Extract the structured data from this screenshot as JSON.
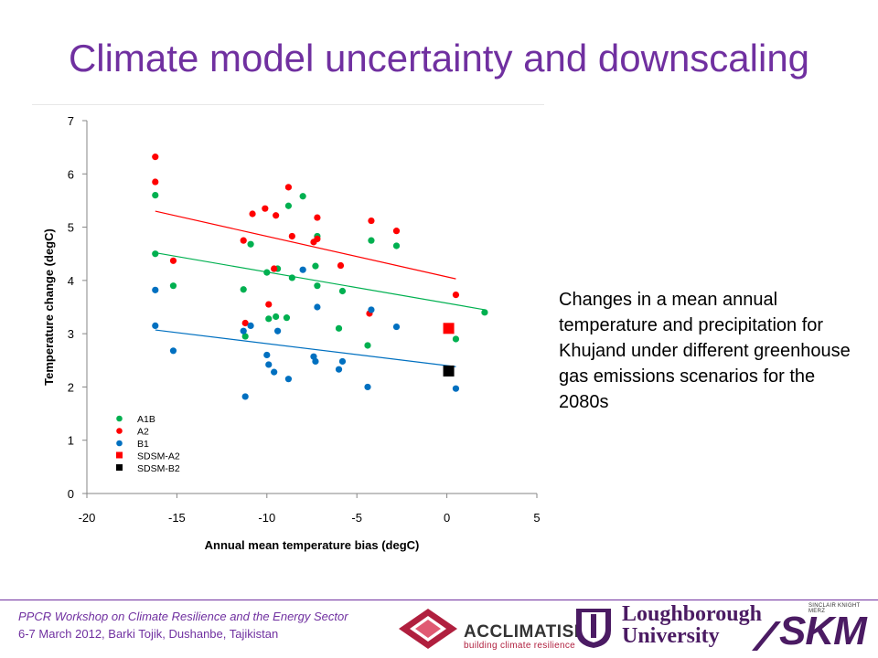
{
  "title": "Climate model uncertainty and downscaling",
  "description": "Changes in a mean annual temperature and precipitation for Khujand under different greenhouse gas emissions scenarios for the 2080s",
  "footer": {
    "line1": "PPCR Workshop on Climate Resilience and the Energy Sector",
    "line2": "6-7 March 2012, Barki Tojik, Dushanbe, Tajikistan"
  },
  "logos": {
    "acclimatise": "ACCLIMATISE",
    "acclimatise_tagline": "building climate resilience",
    "loughborough_line1": "Loughborough",
    "loughborough_line2": "University",
    "skm_tagline": "SINCLAIR KNIGHT MERZ",
    "skm": "SKM"
  },
  "colors": {
    "title": "#7030a0",
    "A1B": "#00b050",
    "A2": "#ff0000",
    "B1": "#0070c0",
    "SDSM-A2": "#ff0000",
    "SDSM-B2": "#000000"
  },
  "chart_data": {
    "type": "scatter",
    "xlabel": "Annual mean temperature bias (degC)",
    "ylabel": "Temperature change (degC)",
    "xlim": [
      -20,
      5
    ],
    "ylim": [
      0,
      7
    ],
    "xticks": [
      -20,
      -15,
      -10,
      -5,
      0,
      5
    ],
    "yticks": [
      0,
      1,
      2,
      3,
      4,
      5,
      6,
      7
    ],
    "grid": false,
    "legend_position": "bottom-left",
    "series": [
      {
        "name": "A1B",
        "marker": "circle",
        "color": "#00b050",
        "points": [
          [
            -16.2,
            5.6
          ],
          [
            -16.2,
            4.5
          ],
          [
            -15.2,
            3.9
          ],
          [
            -11.3,
            3.83
          ],
          [
            -11.2,
            2.95
          ],
          [
            -10.9,
            4.68
          ],
          [
            -10.0,
            4.15
          ],
          [
            -9.9,
            3.28
          ],
          [
            -9.5,
            3.32
          ],
          [
            -9.4,
            4.22
          ],
          [
            -8.9,
            3.3
          ],
          [
            -8.8,
            5.4
          ],
          [
            -8.6,
            4.05
          ],
          [
            -8.0,
            5.58
          ],
          [
            -7.3,
            4.27
          ],
          [
            -7.2,
            4.83
          ],
          [
            -7.2,
            3.9
          ],
          [
            -6.0,
            3.1
          ],
          [
            -5.8,
            3.8
          ],
          [
            -4.4,
            2.78
          ],
          [
            -4.2,
            4.75
          ],
          [
            -2.8,
            4.65
          ],
          [
            0.5,
            2.9
          ],
          [
            2.1,
            3.4
          ]
        ],
        "trend": [
          [
            -16.2,
            4.52
          ],
          [
            2.1,
            3.45
          ]
        ]
      },
      {
        "name": "A2",
        "marker": "circle",
        "color": "#ff0000",
        "points": [
          [
            -16.2,
            6.32
          ],
          [
            -16.2,
            5.85
          ],
          [
            -15.2,
            4.37
          ],
          [
            -11.3,
            4.75
          ],
          [
            -11.2,
            3.2
          ],
          [
            -10.8,
            5.25
          ],
          [
            -10.1,
            5.35
          ],
          [
            -9.9,
            3.55
          ],
          [
            -9.6,
            4.22
          ],
          [
            -9.5,
            5.22
          ],
          [
            -8.8,
            5.75
          ],
          [
            -8.6,
            4.83
          ],
          [
            -7.4,
            4.72
          ],
          [
            -7.2,
            4.78
          ],
          [
            -7.2,
            5.18
          ],
          [
            -5.9,
            4.28
          ],
          [
            -4.3,
            3.38
          ],
          [
            -4.2,
            5.12
          ],
          [
            -2.8,
            4.93
          ],
          [
            0.5,
            3.73
          ]
        ],
        "trend": [
          [
            -16.2,
            5.3
          ],
          [
            0.5,
            4.03
          ]
        ]
      },
      {
        "name": "B1",
        "marker": "circle",
        "color": "#0070c0",
        "points": [
          [
            -16.2,
            3.82
          ],
          [
            -16.2,
            3.15
          ],
          [
            -15.2,
            2.68
          ],
          [
            -11.3,
            3.05
          ],
          [
            -11.2,
            1.82
          ],
          [
            -10.9,
            3.15
          ],
          [
            -10.0,
            2.6
          ],
          [
            -9.9,
            2.42
          ],
          [
            -9.6,
            2.28
          ],
          [
            -9.4,
            3.05
          ],
          [
            -8.8,
            2.15
          ],
          [
            -8.0,
            4.2
          ],
          [
            -7.4,
            2.57
          ],
          [
            -7.3,
            2.48
          ],
          [
            -7.2,
            3.5
          ],
          [
            -6.0,
            2.33
          ],
          [
            -5.8,
            2.48
          ],
          [
            -4.4,
            2.0
          ],
          [
            -4.2,
            3.45
          ],
          [
            -2.8,
            3.13
          ],
          [
            0.5,
            1.97
          ]
        ],
        "trend": [
          [
            -16.2,
            3.07
          ],
          [
            0.5,
            2.38
          ]
        ]
      },
      {
        "name": "SDSM-A2",
        "marker": "square",
        "color": "#ff0000",
        "points": [
          [
            0.1,
            3.1
          ]
        ]
      },
      {
        "name": "SDSM-B2",
        "marker": "square",
        "color": "#000000",
        "points": [
          [
            0.1,
            2.3
          ]
        ]
      }
    ]
  }
}
